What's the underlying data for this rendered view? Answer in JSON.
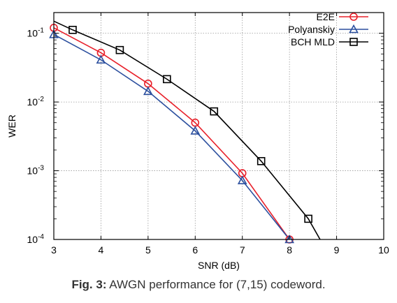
{
  "caption": {
    "label": "Fig. 3:",
    "text": "AWGN performance for (7,15) codeword."
  },
  "chart_data": {
    "type": "line",
    "title": "",
    "xlabel": "SNR (dB)",
    "ylabel": "WER",
    "xlim": [
      3,
      10
    ],
    "ylim": [
      0.0001,
      0.2
    ],
    "yscale": "log",
    "grid": true,
    "legend_position": "top-right",
    "x_ticks": [
      "3",
      "4",
      "5",
      "6",
      "7",
      "8",
      "9",
      "10"
    ],
    "y_ticks": [
      {
        "value": 0.1,
        "base": "10",
        "exp": "-1"
      },
      {
        "value": 0.01,
        "base": "10",
        "exp": "-2"
      },
      {
        "value": 0.001,
        "base": "10",
        "exp": "-3"
      },
      {
        "value": 0.0001,
        "base": "10",
        "exp": "-4"
      }
    ],
    "series": [
      {
        "name": "E2E",
        "color": "#e8202a",
        "marker": "circle",
        "x": [
          3,
          4,
          5,
          6,
          7,
          8
        ],
        "y": [
          0.12,
          0.052,
          0.0185,
          0.005,
          0.00092,
          0.0001
        ]
      },
      {
        "name": "Polyanskiy",
        "color": "#2b4f9e",
        "marker": "triangle",
        "x": [
          3,
          4,
          5,
          6,
          7,
          8
        ],
        "y": [
          0.096,
          0.041,
          0.0143,
          0.0038,
          0.00072,
          0.0001
        ]
      },
      {
        "name": "BCH MLD",
        "color": "#000000",
        "marker": "square",
        "x": [
          3,
          3.4,
          4.4,
          5.4,
          6.4,
          7.4,
          8.4,
          8.65
        ],
        "y": [
          0.15,
          0.112,
          0.057,
          0.0215,
          0.0073,
          0.00138,
          0.0002,
          0.0001
        ],
        "marker_points": [
          1,
          2,
          3,
          4,
          5,
          6
        ]
      }
    ]
  }
}
